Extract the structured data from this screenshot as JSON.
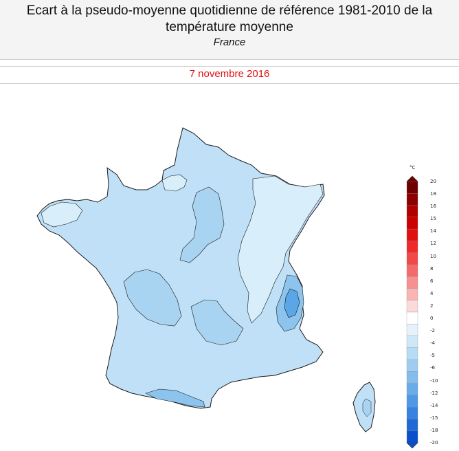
{
  "header": {
    "title": "Ecart à la pseudo-moyenne quotidienne de référence 1981-2010 de la température moyenne",
    "subtitle": "France"
  },
  "date": "7 novembre 2016",
  "legend": {
    "unit": "°C",
    "ticks": [
      "20",
      "18",
      "16",
      "15",
      "14",
      "12",
      "10",
      "8",
      "6",
      "4",
      "2",
      "0",
      "-2",
      "-4",
      "-5",
      "-6",
      "-10",
      "-12",
      "-14",
      "-15",
      "-18",
      "-20"
    ],
    "colors": [
      "#6e0000",
      "#8e0000",
      "#b00000",
      "#cc0000",
      "#e01010",
      "#ee2a2a",
      "#f24848",
      "#f46a6a",
      "#f79090",
      "#fab4b4",
      "#fcdada",
      "#ffffff",
      "#e6f2fb",
      "#cfe8f8",
      "#b7dcf5",
      "#9ecdf1",
      "#84bdec",
      "#69acea",
      "#4f98e6",
      "#3883e2",
      "#2169d6",
      "#0c4fcc"
    ]
  },
  "map": {
    "colors": {
      "base": "#bfe0f6",
      "light": "#d8eefb",
      "mid": "#a8d4f2",
      "dark": "#8dc4ee",
      "deep": "#5aa6e6",
      "outline": "#1a1a1a"
    }
  }
}
